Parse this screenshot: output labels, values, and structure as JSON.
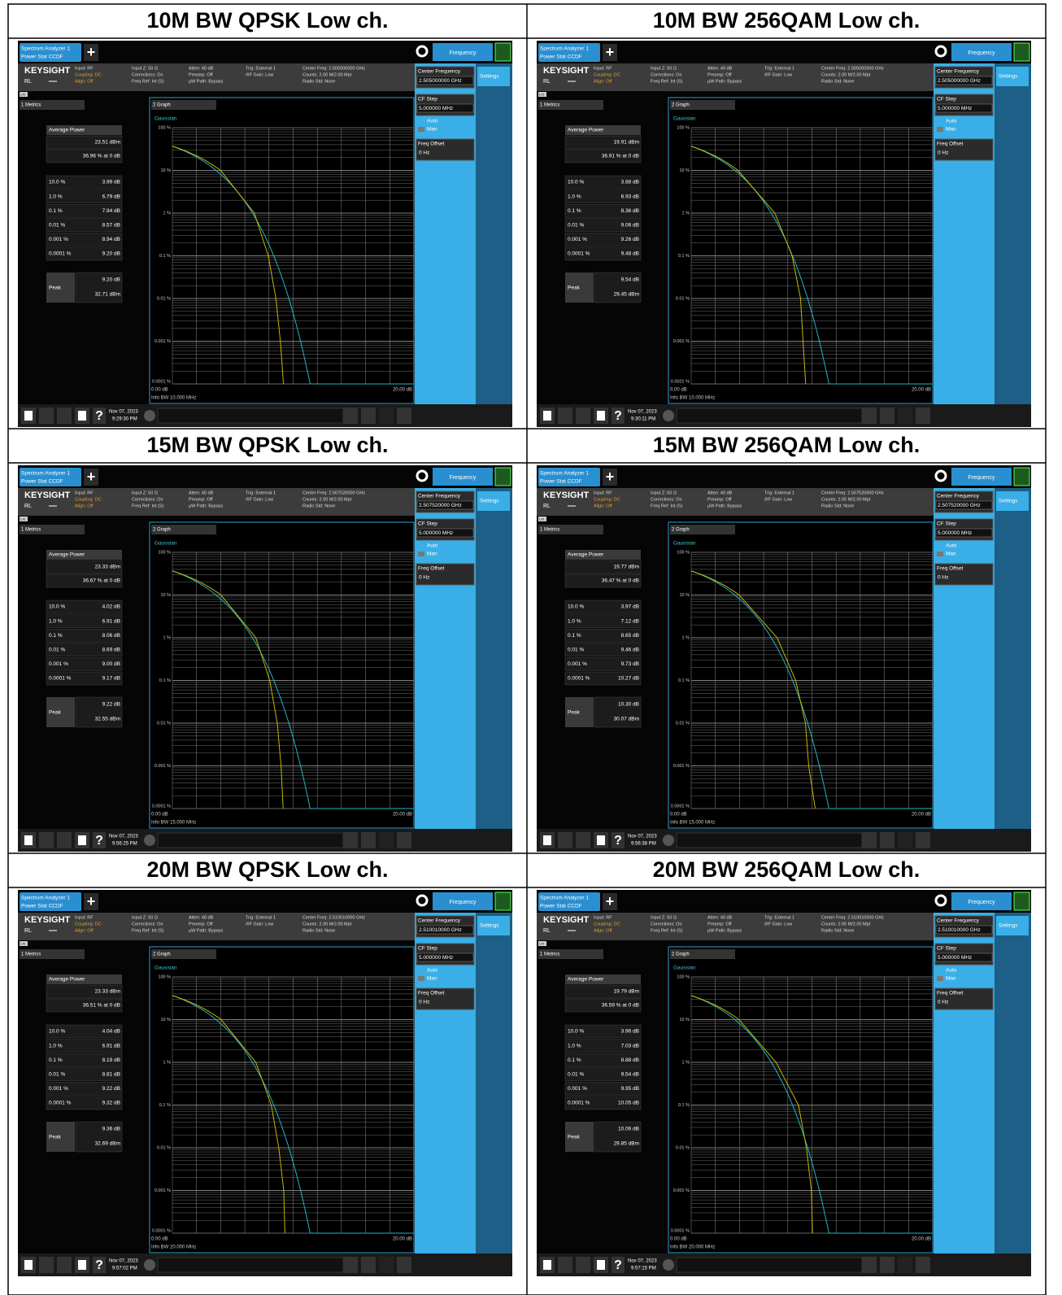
{
  "common": {
    "tab": [
      "Spectrum Analyzer 1",
      "Power Stat CCDF"
    ],
    "menu": "Frequency",
    "brand": "KEYSIGHT",
    "ref": "RL",
    "lxi": "LXI",
    "info": [
      [
        "Input: RF",
        "Coupling: DC",
        "Align: Off"
      ],
      [
        "Input Z: 50 Ω",
        "Corrections: On",
        "Freq Ref: Int (S)"
      ],
      [
        "Atten: 40 dB",
        "Preamp: Off",
        "µW Path: Bypass"
      ],
      [
        "Trig: External 1",
        "#IF Gain: Low"
      ]
    ],
    "info_last": [
      "Counts: 2.00 M/2.00 Mpt",
      "Radio Std: None"
    ],
    "side": {
      "center_frequency": "Center Frequency",
      "settings": "Settings",
      "cf_step": "CF Step",
      "cf_step_value": "5.000000 MHz",
      "auto": "Auto",
      "man": "Man",
      "freq_offset": "Freq Offset",
      "freq_offset_value": "0 Hz"
    },
    "metrics_menu": "1 Metrics",
    "graph_menu": "2 Graph",
    "gaussian": "Gaussian",
    "average_power": "Average Power",
    "peak": "Peak",
    "levels": [
      "10.0 %",
      "1.0 %",
      "0.1 %",
      "0.01 %",
      "0.001 %",
      "0.0001 %"
    ],
    "y_axis": [
      "100 %",
      "10 %",
      "1 %",
      "0.1 %",
      "0.01 %",
      "0.001 %",
      "0.0001 %"
    ],
    "x_start": "0.00 dB",
    "x_end": "20.00 dB",
    "date": "Nov 07, 2023"
  },
  "table": {
    "rows": [
      [
        {
          "title": "10M BW QPSK Low ch.",
          "screen": {
            "center_freq_info": "Center Freq: 2.505000000 GHz",
            "center_frequency": "2.505000000 GHz",
            "average_power": "23.51 dBm",
            "average_percent": "36.96 % at 0 dB",
            "level_values": [
              "3.99 dB",
              "6.79 dB",
              "7.94 dB",
              "8.57 dB",
              "8.94 dB",
              "9.20 dB"
            ],
            "peak_db": "9.20 dB",
            "peak_dbm": "32.71 dBm",
            "info_bw": "Info BW 10.000 MHz",
            "time": "9:29:30 PM"
          }
        },
        {
          "title": "10M BW 256QAM Low ch.",
          "screen": {
            "center_freq_info": "Center Freq: 2.505000000 GHz",
            "center_frequency": "2.505000000 GHz",
            "average_power": "19.91 dBm",
            "average_percent": "36.91 % at 0 dB",
            "level_values": [
              "3.88 dB",
              "6.93 dB",
              "8.36 dB",
              "9.06 dB",
              "9.26 dB",
              "9.48 dB"
            ],
            "peak_db": "9.54 dB",
            "peak_dbm": "29.45 dBm",
            "info_bw": "Info BW 10.000 MHz",
            "time": "9:30:11 PM"
          }
        }
      ],
      [
        {
          "title": "15M BW QPSK Low ch.",
          "screen": {
            "center_freq_info": "Center Freq: 2.507520000 GHz",
            "center_frequency": "2.507520000 GHz",
            "average_power": "23.33 dBm",
            "average_percent": "36.67 % at 0 dB",
            "level_values": [
              "4.02 dB",
              "6.91 dB",
              "8.06 dB",
              "8.69 dB",
              "9.00 dB",
              "9.17 dB"
            ],
            "peak_db": "9.22 dB",
            "peak_dbm": "32.55 dBm",
            "info_bw": "Info BW 15.000 MHz",
            "time": "9:56:25 PM"
          }
        },
        {
          "title": "15M BW 256QAM Low ch.",
          "screen": {
            "center_freq_info": "Center Freq: 2.507520000 GHz",
            "center_frequency": "2.507520000 GHz",
            "average_power": "19.77 dBm",
            "average_percent": "36.47 % at 0 dB",
            "level_values": [
              "3.97 dB",
              "7.12 dB",
              "8.65 dB",
              "9.46 dB",
              "9.73 dB",
              "10.27 dB"
            ],
            "peak_db": "10.30 dB",
            "peak_dbm": "30.07 dBm",
            "info_bw": "Info BW 15.000 MHz",
            "time": "9:56:38 PM"
          }
        }
      ],
      [
        {
          "title": "20M BW QPSK Low ch.",
          "screen": {
            "center_freq_info": "Center Freq: 2.510010000 GHz",
            "center_frequency": "2.510010000 GHz",
            "average_power": "23.33 dBm",
            "average_percent": "36.51 % at 0 dB",
            "level_values": [
              "4.04 dB",
              "6.91 dB",
              "8.19 dB",
              "8.81 dB",
              "9.22 dB",
              "9.32 dB"
            ],
            "peak_db": "9.36 dB",
            "peak_dbm": "32.69 dBm",
            "info_bw": "Info BW 20.000 MHz",
            "time": "9:57:02 PM"
          }
        },
        {
          "title": "20M BW 256QAM Low ch.",
          "screen": {
            "center_freq_info": "Center Freq: 2.510010000 GHz",
            "center_frequency": "2.510010000 GHz",
            "average_power": "19.79 dBm",
            "average_percent": "36.59 % at 0 dB",
            "level_values": [
              "3.96 dB",
              "7.03 dB",
              "8.88 dB",
              "9.54 dB",
              "9.95 dB",
              "10.05 dB"
            ],
            "peak_db": "10.06 dB",
            "peak_dbm": "29.85 dBm",
            "info_bw": "Info BW 20.000 MHz",
            "time": "9:57:15 PM"
          }
        }
      ]
    ]
  }
}
